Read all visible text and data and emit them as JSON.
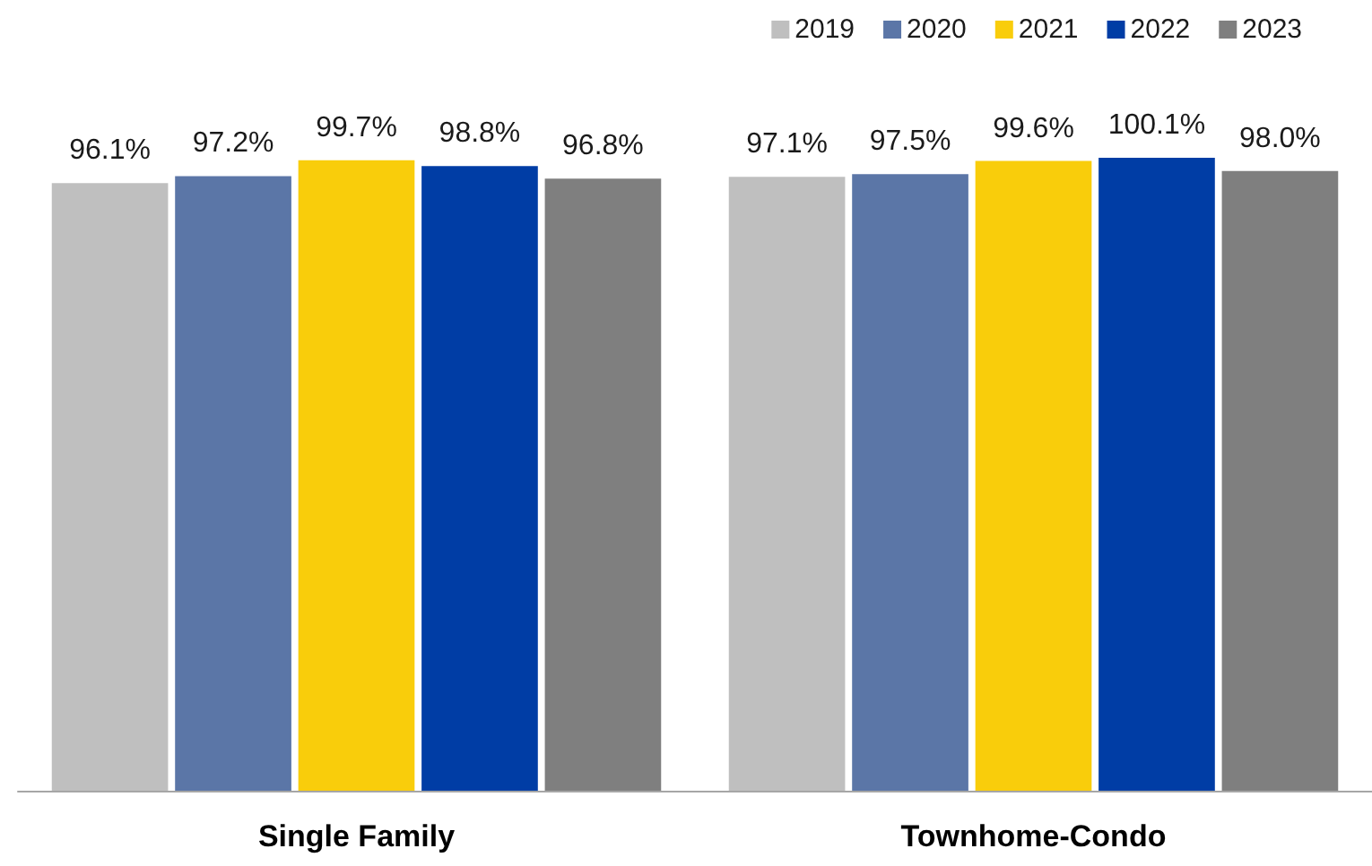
{
  "chart_data": {
    "type": "bar",
    "categories": [
      "Single Family",
      "Townhome-Condo"
    ],
    "series": [
      {
        "name": "2019",
        "color": "#bfbfbf",
        "values": [
          96.1,
          97.1
        ],
        "value_labels": [
          "96.1%",
          "97.1%"
        ]
      },
      {
        "name": "2020",
        "color": "#5b76a7",
        "values": [
          97.2,
          97.5
        ],
        "value_labels": [
          "97.2%",
          "97.5%"
        ]
      },
      {
        "name": "2021",
        "color": "#f9cd0b",
        "values": [
          99.7,
          99.6
        ],
        "value_labels": [
          "99.7%",
          "99.6%"
        ]
      },
      {
        "name": "2022",
        "color": "#003da5",
        "values": [
          98.8,
          100.1
        ],
        "value_labels": [
          "98.8%",
          "100.1%"
        ]
      },
      {
        "name": "2023",
        "color": "#7f7f7f",
        "values": [
          96.8,
          98.0
        ],
        "value_labels": [
          "96.8%",
          "98.0%"
        ]
      }
    ],
    "legend": "top right",
    "grid": false,
    "tick_labels": "x"
  }
}
